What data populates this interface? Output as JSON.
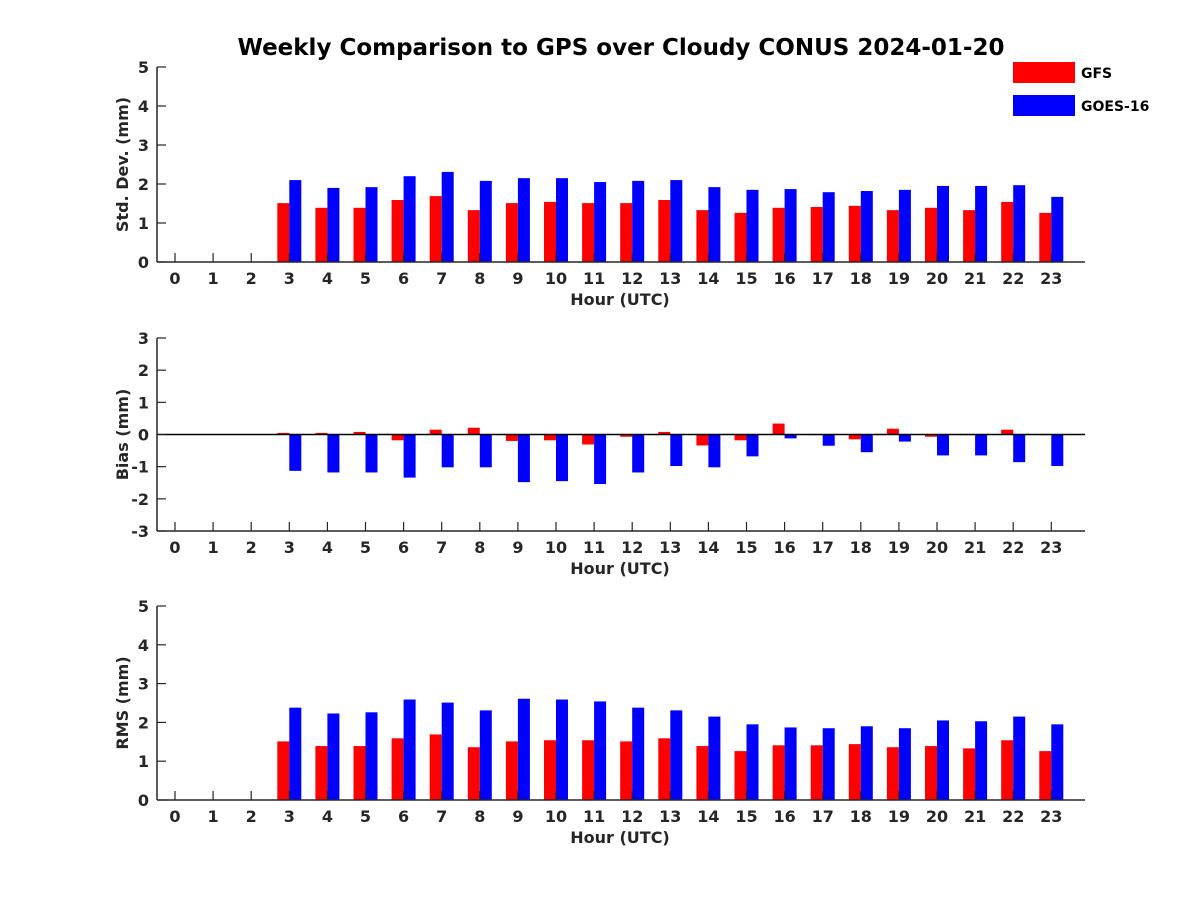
{
  "title": "Weekly Comparison to GPS over Cloudy CONUS 2024-01-20",
  "colors": {
    "GFS": "#ff0000",
    "GOES-16": "#0000ff",
    "axis": "#262626"
  },
  "chart_data": [
    {
      "type": "bar",
      "title": "Weekly Comparison to GPS over Cloudy CONUS 2024-01-20",
      "xlabel": "Hour (UTC)",
      "ylabel": "Std. Dev. (mm)",
      "ylim": [
        0,
        5
      ],
      "yticks": [
        0,
        1,
        2,
        3,
        4,
        5
      ],
      "categories": [
        "0",
        "1",
        "2",
        "3",
        "4",
        "5",
        "6",
        "7",
        "8",
        "9",
        "10",
        "11",
        "12",
        "13",
        "14",
        "15",
        "16",
        "17",
        "18",
        "19",
        "20",
        "21",
        "22",
        "23"
      ],
      "legend": "top-right",
      "series": [
        {
          "name": "GFS",
          "values": [
            null,
            null,
            null,
            1.51,
            1.39,
            1.39,
            1.59,
            1.69,
            1.33,
            1.51,
            1.54,
            1.51,
            1.51,
            1.59,
            1.33,
            1.26,
            1.39,
            1.41,
            1.44,
            1.33,
            1.39,
            1.33,
            1.54,
            1.26
          ]
        },
        {
          "name": "GOES-16",
          "values": [
            null,
            null,
            null,
            2.1,
            1.9,
            1.92,
            2.2,
            2.31,
            2.08,
            2.15,
            2.15,
            2.05,
            2.08,
            2.1,
            1.92,
            1.85,
            1.87,
            1.79,
            1.82,
            1.85,
            1.95,
            1.95,
            1.97,
            1.67
          ]
        }
      ]
    },
    {
      "type": "bar",
      "xlabel": "Hour (UTC)",
      "ylabel": "Bias (mm)",
      "ylim": [
        -3,
        3
      ],
      "yticks": [
        -3,
        -2,
        -1,
        0,
        1,
        2,
        3
      ],
      "categories": [
        "0",
        "1",
        "2",
        "3",
        "4",
        "5",
        "6",
        "7",
        "8",
        "9",
        "10",
        "11",
        "12",
        "13",
        "14",
        "15",
        "16",
        "17",
        "18",
        "19",
        "20",
        "21",
        "22",
        "23"
      ],
      "series": [
        {
          "name": "GFS",
          "values": [
            null,
            null,
            null,
            0.05,
            0.05,
            0.08,
            -0.18,
            0.15,
            0.21,
            -0.2,
            -0.18,
            -0.31,
            -0.07,
            0.08,
            -0.34,
            -0.18,
            0.34,
            -0.02,
            -0.15,
            0.18,
            -0.07,
            -0.02,
            0.15,
            -0.02
          ]
        },
        {
          "name": "GOES-16",
          "values": [
            null,
            null,
            null,
            -1.13,
            -1.18,
            -1.18,
            -1.34,
            -1.02,
            -1.02,
            -1.48,
            -1.45,
            -1.54,
            -1.18,
            -0.98,
            -1.02,
            -0.68,
            -0.12,
            -0.35,
            -0.55,
            -0.22,
            -0.65,
            -0.65,
            -0.86,
            -0.98
          ]
        }
      ]
    },
    {
      "type": "bar",
      "xlabel": "Hour (UTC)",
      "ylabel": "RMS (mm)",
      "ylim": [
        0,
        5
      ],
      "yticks": [
        0,
        1,
        2,
        3,
        4,
        5
      ],
      "categories": [
        "0",
        "1",
        "2",
        "3",
        "4",
        "5",
        "6",
        "7",
        "8",
        "9",
        "10",
        "11",
        "12",
        "13",
        "14",
        "15",
        "16",
        "17",
        "18",
        "19",
        "20",
        "21",
        "22",
        "23"
      ],
      "series": [
        {
          "name": "GFS",
          "values": [
            null,
            null,
            null,
            1.51,
            1.39,
            1.39,
            1.59,
            1.69,
            1.36,
            1.51,
            1.54,
            1.54,
            1.51,
            1.59,
            1.39,
            1.26,
            1.41,
            1.41,
            1.44,
            1.36,
            1.39,
            1.33,
            1.54,
            1.26
          ]
        },
        {
          "name": "GOES-16",
          "values": [
            null,
            null,
            null,
            2.38,
            2.23,
            2.26,
            2.59,
            2.51,
            2.31,
            2.61,
            2.59,
            2.54,
            2.38,
            2.31,
            2.15,
            1.95,
            1.87,
            1.85,
            1.9,
            1.85,
            2.05,
            2.03,
            2.15,
            1.95
          ]
        }
      ]
    }
  ]
}
